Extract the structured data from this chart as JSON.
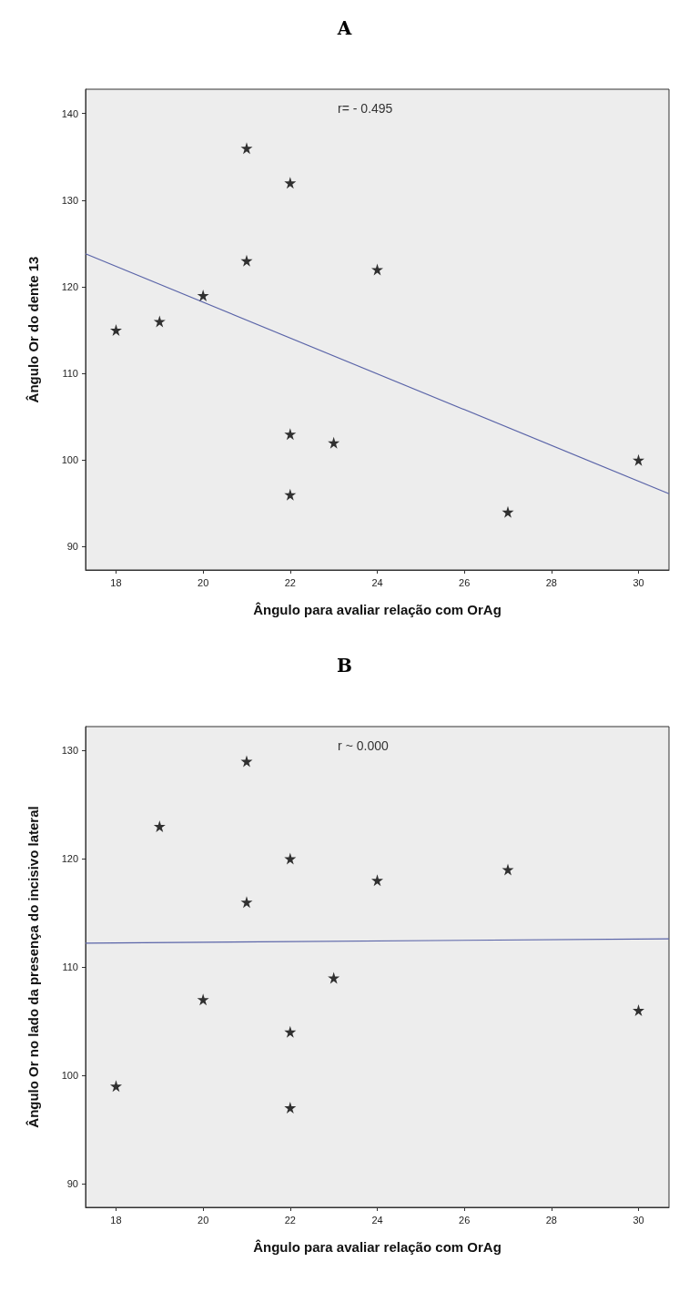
{
  "chart_data": [
    {
      "type": "scatter",
      "title": "A",
      "xlabel": "Ângulo para avaliar relação com OrAg",
      "ylabel": "Ângulo Or do dente 13",
      "annotations": [
        "r= - 0.495"
      ],
      "marker": "star",
      "grid": false,
      "xlim": [
        17.3,
        30.7
      ],
      "ylim": [
        87.3,
        142.8
      ],
      "xticks": [
        18,
        20,
        22,
        24,
        26,
        28,
        30
      ],
      "yticks": [
        90,
        100,
        110,
        120,
        130,
        140
      ],
      "series": [
        {
          "color": "#000000",
          "x": [
            18,
            19,
            20,
            21,
            21,
            22,
            22,
            22,
            23,
            24,
            27,
            30
          ],
          "values": [
            115,
            116,
            119,
            136,
            123,
            132,
            103,
            96,
            102,
            122,
            94,
            100
          ]
        },
        {
          "type": "line",
          "color": "#5a64a8",
          "marker": "none",
          "x": [
            17.3,
            30.7
          ],
          "values": [
            123.8,
            96.1
          ]
        }
      ]
    },
    {
      "type": "scatter",
      "title": "B",
      "xlabel": "Ângulo para avaliar relação com OrAg",
      "ylabel": "Ângulo Or no lado da presença do incisivo lateral",
      "annotations": [
        "r ~ 0.000"
      ],
      "marker": "star",
      "grid": false,
      "xlim": [
        17.3,
        30.7
      ],
      "ylim": [
        87.8,
        132.2
      ],
      "xticks": [
        18,
        20,
        22,
        24,
        26,
        28,
        30
      ],
      "yticks": [
        90,
        100,
        110,
        120,
        130
      ],
      "series": [
        {
          "color": "#000000",
          "x": [
            18,
            19,
            20,
            21,
            21,
            22,
            22,
            22,
            23,
            24,
            27,
            30
          ],
          "values": [
            99,
            123,
            107,
            129,
            116,
            120,
            104,
            97,
            109,
            118,
            119,
            106
          ]
        },
        {
          "type": "line",
          "color": "#5a64a8",
          "marker": "none",
          "x": [
            17.3,
            30.7
          ],
          "values": [
            112.2,
            112.6
          ]
        }
      ]
    }
  ]
}
